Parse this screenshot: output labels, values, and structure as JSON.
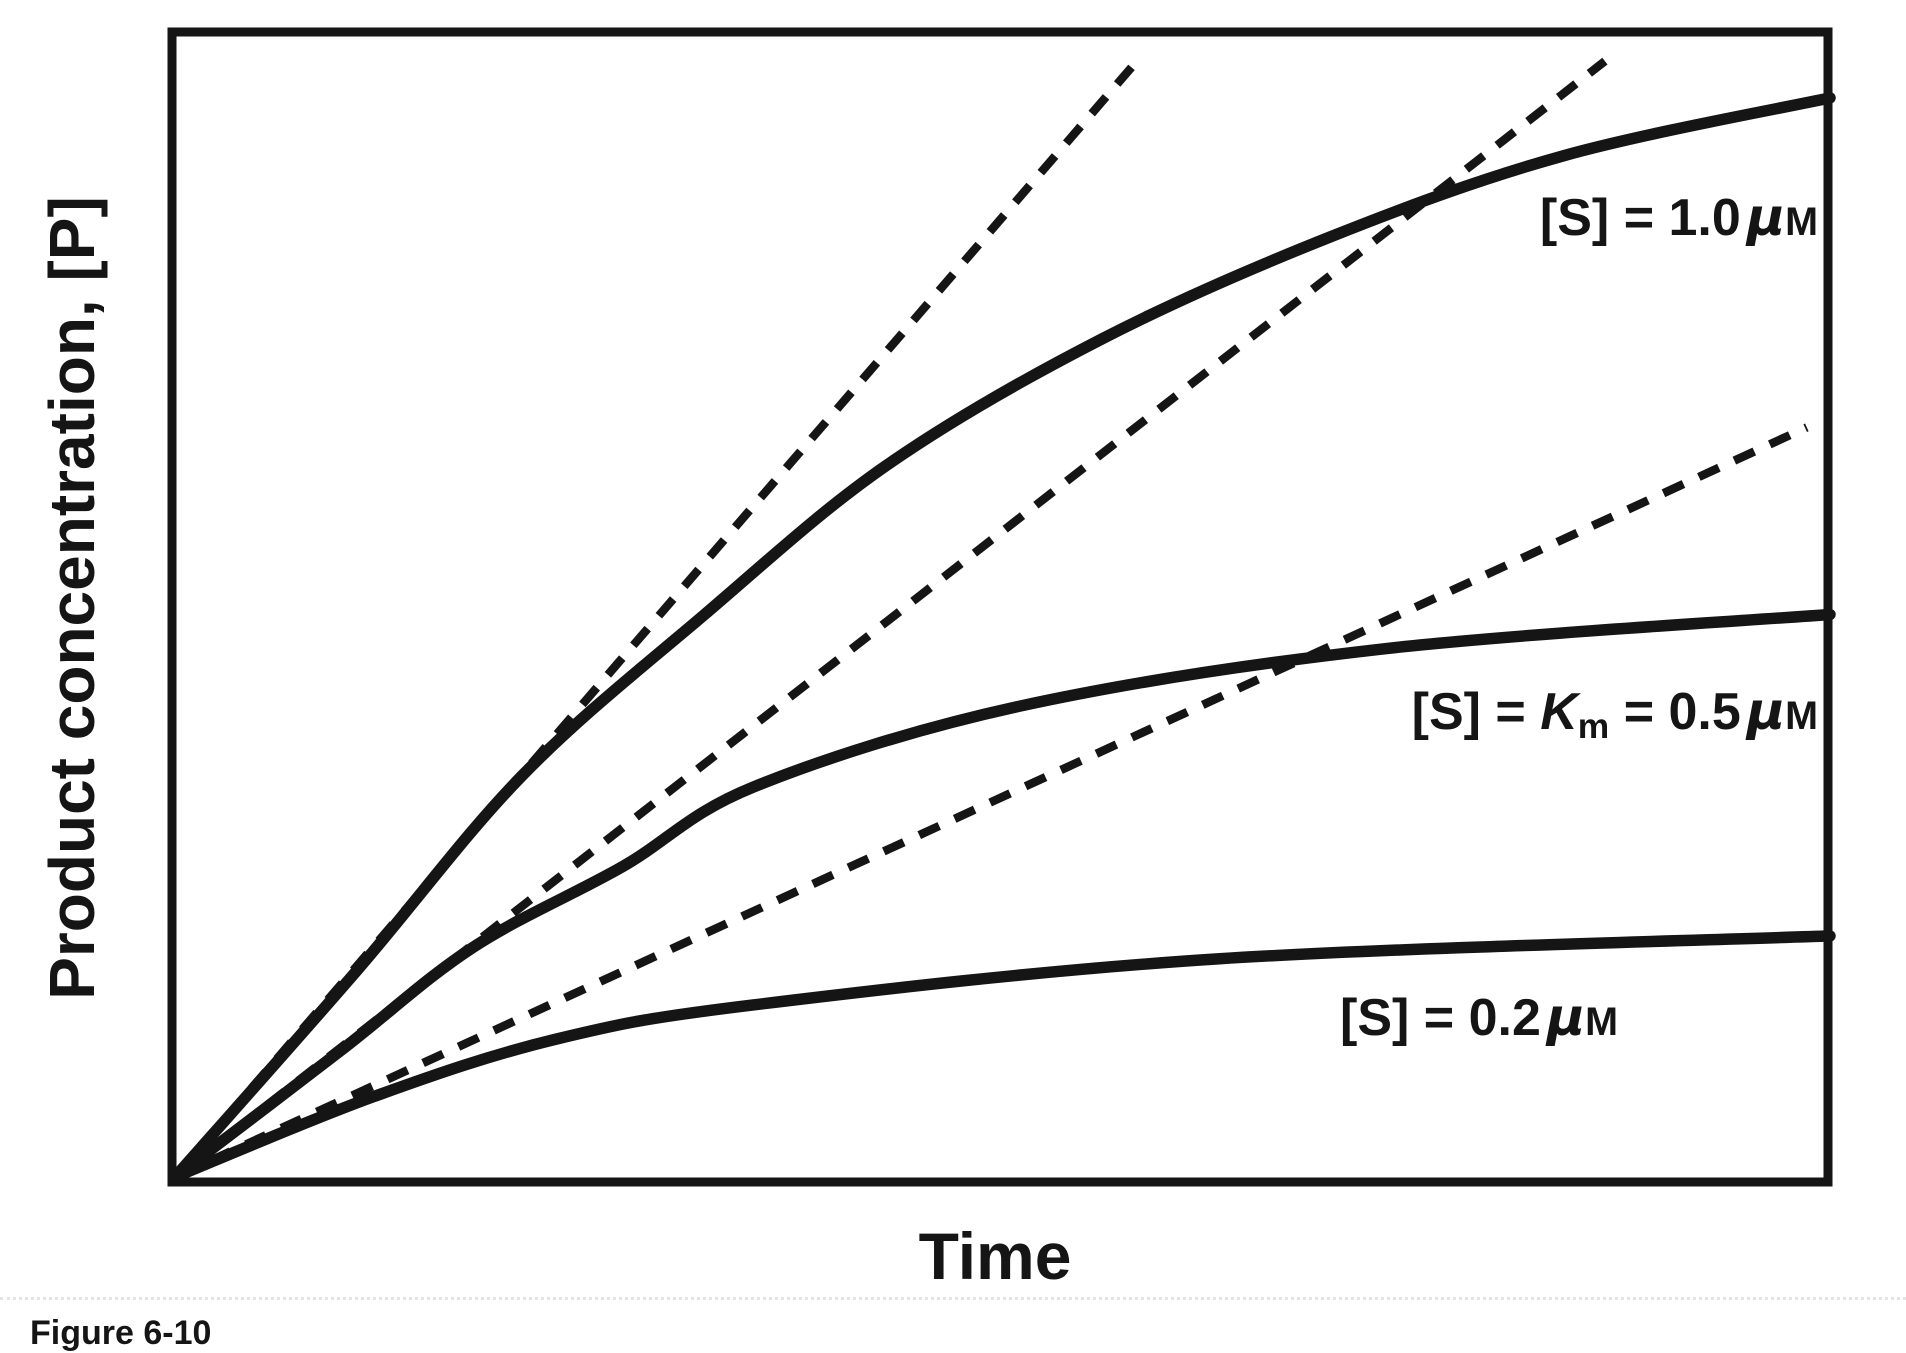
{
  "figure": {
    "caption": "Figure 6-10",
    "background_color": "#ffffff",
    "line_color": "#151515"
  },
  "axes": {
    "x_label": "Time",
    "y_label": "Product concentration, [P]"
  },
  "curve_labels": {
    "s10": {
      "bracket": "[S]",
      "eq": " = ",
      "value": "1.0",
      "mu": "μ",
      "unit": "M"
    },
    "s05": {
      "bracket": "[S]",
      "eq1": " = ",
      "k": "K",
      "k_sub": "m",
      "eq2": " = ",
      "value": "0.5",
      "mu": "μ",
      "unit": "M"
    },
    "s02": {
      "bracket": "[S]",
      "eq": " = ",
      "value": "0.2",
      "mu": "μ",
      "unit": "M"
    }
  },
  "chart_data": {
    "type": "line",
    "title": "",
    "xlabel": "Time",
    "ylabel": "Product concentration, [P]",
    "x_units": "arbitrary (no tick marks or numeric labels shown)",
    "y_units": "arbitrary (no tick marks or numeric labels shown)",
    "xlim": [
      0,
      1
    ],
    "ylim": [
      0,
      1
    ],
    "grid": false,
    "axis_box": true,
    "legend_position": "inline labels next to curves",
    "note": "Enzyme-kinetics progress curves: product concentration [P] versus time at three substrate concentrations; dashed straight lines through the origin are the initial-velocity tangents of each curve.",
    "series": [
      {
        "name": "[S] = 1.0 μM",
        "style": "solid",
        "points": [
          [
            0,
            0
          ],
          [
            0.11,
            0.18
          ],
          [
            0.21,
            0.35
          ],
          [
            0.32,
            0.49
          ],
          [
            0.43,
            0.62
          ],
          [
            0.56,
            0.73
          ],
          [
            0.7,
            0.82
          ],
          [
            0.84,
            0.89
          ],
          [
            1.0,
            0.94
          ]
        ]
      },
      {
        "name": "[S] = Km = 0.5 μM",
        "style": "solid",
        "points": [
          [
            0,
            0
          ],
          [
            0.1,
            0.11
          ],
          [
            0.18,
            0.2
          ],
          [
            0.27,
            0.27
          ],
          [
            0.35,
            0.34
          ],
          [
            0.51,
            0.41
          ],
          [
            0.73,
            0.46
          ],
          [
            1.0,
            0.49
          ]
        ]
      },
      {
        "name": "[S] = 0.2 μM",
        "style": "solid",
        "points": [
          [
            0,
            0
          ],
          [
            0.12,
            0.07
          ],
          [
            0.23,
            0.12
          ],
          [
            0.35,
            0.15
          ],
          [
            0.63,
            0.19
          ],
          [
            1.0,
            0.21
          ]
        ]
      },
      {
        "name": "initial-rate tangent for [S] = 1.0 μM",
        "style": "dashed",
        "points": [
          [
            0,
            0
          ],
          [
            0.58,
            0.97
          ]
        ]
      },
      {
        "name": "initial-rate tangent for [S] = 0.5 μM",
        "style": "dashed",
        "points": [
          [
            0,
            0
          ],
          [
            0.864,
            0.972
          ]
        ]
      },
      {
        "name": "initial-rate tangent for [S] = 0.2 μM",
        "style": "dashed",
        "points": [
          [
            0,
            0
          ],
          [
            0.986,
            0.653
          ]
        ]
      }
    ]
  }
}
